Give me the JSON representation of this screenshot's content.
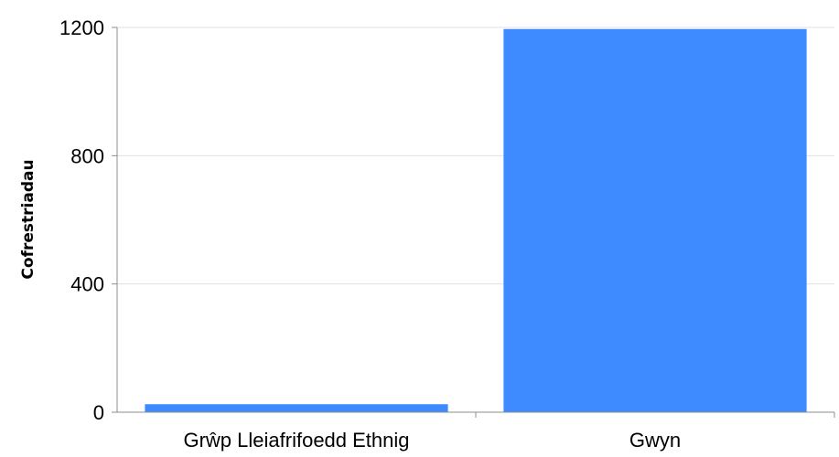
{
  "chart_data": {
    "type": "bar",
    "title": "",
    "xlabel": "",
    "ylabel": "Cofrestriadau",
    "categories": [
      "Grŵp Lleiafrifoedd Ethnig",
      "Gwyn"
    ],
    "values": [
      25,
      1195
    ],
    "ylim": [
      0,
      1200
    ],
    "yticks": [
      "0",
      "400",
      "800",
      "1200"
    ],
    "grid": true,
    "legend": "none",
    "bar_color": "#3d8bff",
    "grid_color": "#e0e0e0",
    "axis_color": "#8c8c8c"
  }
}
